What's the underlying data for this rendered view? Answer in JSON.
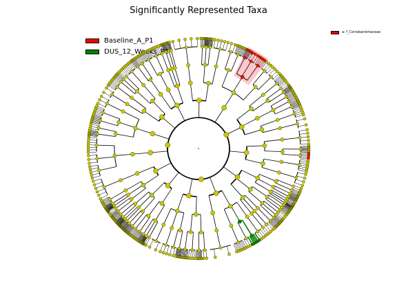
{
  "title": "Significantly Represented Taxa",
  "legend": {
    "classes": [
      {
        "name": "Baseline_A_P1",
        "color": "#ff0000"
      },
      {
        "name": "DUS_12_Weeks_P1",
        "color": "#008000"
      }
    ]
  },
  "taxa_legend": [
    {
      "label": "a: f_Coriobacteriaceae",
      "color": "#ff0000"
    }
  ],
  "highlight_label": "a",
  "colors": {
    "node_default": "#c8c800",
    "node_stroke": "#4a4a00",
    "edge": "#000000",
    "baseline": "#ff0000",
    "baseline_shade": "#ffb0b8",
    "dus": "#008000"
  }
}
